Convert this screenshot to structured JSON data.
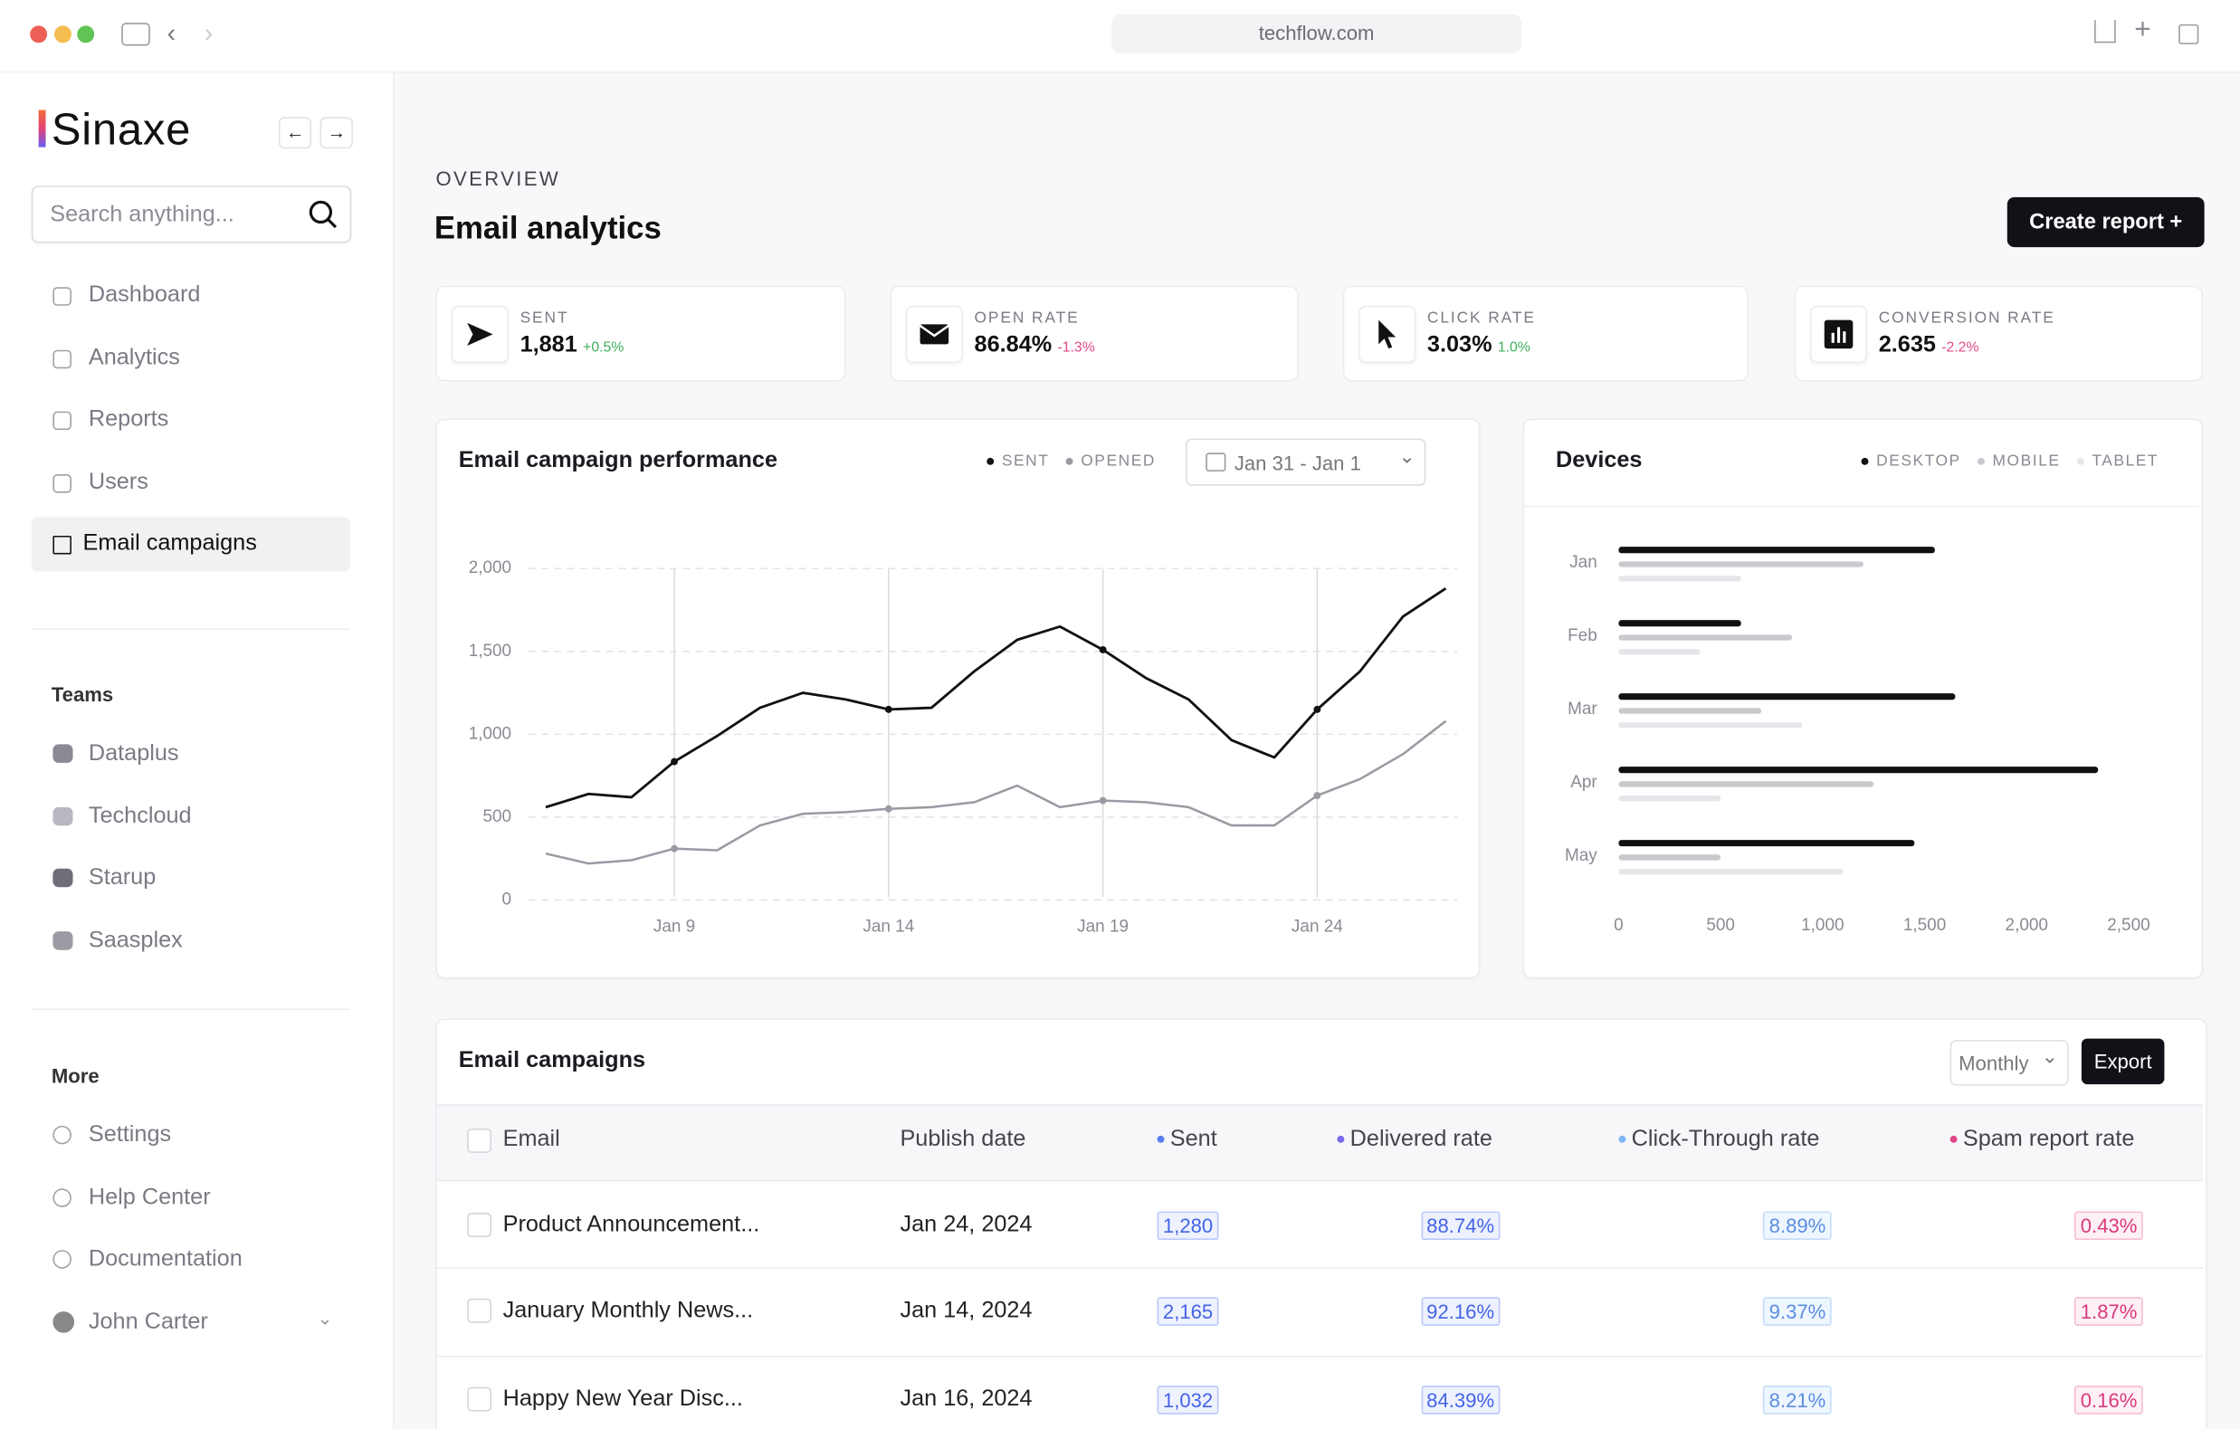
{
  "browser": {
    "url": "techflow.com"
  },
  "sidebar": {
    "brand": "Sinaxe",
    "search_placeholder": "Search anything...",
    "nav": [
      "Dashboard",
      "Analytics",
      "Reports",
      "Users",
      "Email campaigns"
    ],
    "teams_title": "Teams",
    "teams": [
      "Dataplus",
      "Techcloud",
      "Starup",
      "Saasplex"
    ],
    "more_title": "More",
    "more": [
      "Settings",
      "Help Center",
      "Documentation"
    ],
    "user": "John Carter"
  },
  "header": {
    "eyebrow": "OVERVIEW",
    "title": "Email analytics",
    "button": "Create report +"
  },
  "kpis": [
    {
      "label": "SENT",
      "value": "1,881",
      "change": "+0.5%"
    },
    {
      "label": "OPEN RATE",
      "value": "86.84%",
      "change": "-1.3%"
    },
    {
      "label": "CLICK RATE",
      "value": "3.03%",
      "change": "1.0%"
    },
    {
      "label": "CONVERSION RATE",
      "value": "2.635",
      "change": "-2.2%"
    }
  ],
  "performance_chart": {
    "type": "line",
    "title": "Email campaign performance",
    "date_range": "Jan 31 - Jan 1",
    "categories": [
      null,
      null,
      null,
      "Jan 9",
      null,
      null,
      null,
      null,
      "Jan 14",
      null,
      null,
      null,
      null,
      "Jan 19",
      null,
      null,
      null,
      null,
      "Jan 24",
      null,
      null,
      null
    ],
    "series": [
      {
        "name": "SENT",
        "color": "#111111",
        "values": [
          560,
          640,
          620,
          835,
          990,
          1160,
          1250,
          1210,
          1150,
          1160,
          1380,
          1570,
          1650,
          1510,
          1340,
          1210,
          965,
          860,
          1150,
          1380,
          1710,
          1880
        ]
      },
      {
        "name": "OPENED",
        "color": "#9a9aa3",
        "values": [
          280,
          220,
          240,
          310,
          300,
          450,
          520,
          530,
          550,
          560,
          590,
          690,
          560,
          600,
          590,
          560,
          450,
          450,
          630,
          730,
          880,
          1080
        ]
      }
    ],
    "ylim": [
      0,
      2000
    ],
    "yticks": [
      0,
      500,
      {
        "value": 1000,
        "label": "1,000"
      },
      {
        "value": 1500,
        "label": "1,500"
      },
      {
        "value": 2000,
        "label": "2,000"
      }
    ],
    "grid": true
  },
  "devices_chart": {
    "type": "bar",
    "orientation": "horizontal",
    "title": "Devices",
    "categories": [
      "Jan",
      "Feb",
      "Mar",
      "Apr",
      "May"
    ],
    "series": [
      {
        "name": "DESKTOP",
        "color": "#111111",
        "values": [
          1550,
          600,
          1650,
          2350,
          1450
        ]
      },
      {
        "name": "MOBILE",
        "color": "#c9c9ce",
        "values": [
          1200,
          850,
          700,
          1250,
          500
        ]
      },
      {
        "name": "TABLET",
        "color": "#e6e6ea",
        "values": [
          600,
          400,
          900,
          500,
          1100
        ]
      }
    ],
    "xlim": [
      0,
      2500
    ],
    "xticks": [
      0,
      500,
      {
        "value": 1000,
        "label": "1,000"
      },
      {
        "value": 1500,
        "label": "1,500"
      },
      {
        "value": 2000,
        "label": "2,000"
      },
      {
        "value": 2500,
        "label": "2,500"
      }
    ]
  },
  "table": {
    "title": "Email campaigns",
    "filter": "Monthly",
    "button": "Export",
    "columns": [
      "Email",
      "Publish date",
      "Sent",
      "Delivered rate",
      "Click-Through rate",
      "Spam report rate"
    ],
    "rows": [
      [
        "Product Announcement...",
        "Jan 24, 2024",
        "1,280",
        "88.74%",
        "8.89%",
        "0.43%"
      ],
      [
        "January Monthly News...",
        "Jan 14, 2024",
        "2,165",
        "92.16%",
        "9.37%",
        "1.87%"
      ],
      [
        "Happy New Year Disc...",
        "Jan 16, 2024",
        "1,032",
        "84.39%",
        "8.21%",
        "0.16%"
      ]
    ]
  }
}
